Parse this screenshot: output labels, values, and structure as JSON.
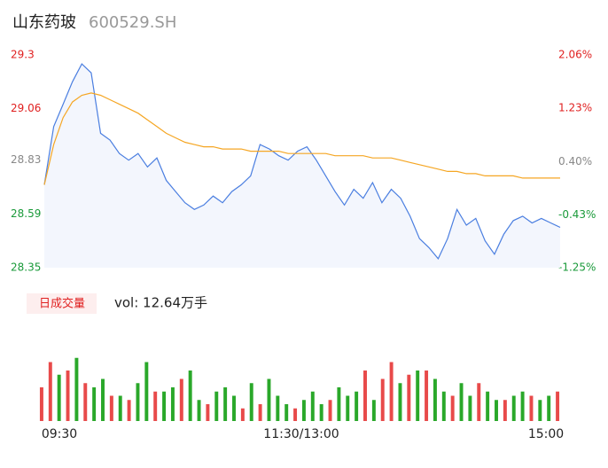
{
  "header": {
    "name": "山东药玻",
    "code": "600529.SH"
  },
  "chart_data": [
    {
      "type": "line",
      "ylim": [
        28.35,
        29.3
      ],
      "yticks": [
        28.35,
        28.59,
        28.83,
        29.06,
        29.3
      ],
      "ytick_colors": [
        "#1a9a3a",
        "#1a9a3a",
        "#888888",
        "#e02020",
        "#e02020"
      ],
      "y2lim": [
        -1.25,
        2.06
      ],
      "y2ticks": [
        {
          "value": -1.25,
          "label": "-1.25%"
        },
        {
          "value": -0.43,
          "label": "-0.43%"
        },
        {
          "value": 0.4,
          "label": "0.40%"
        },
        {
          "value": 1.23,
          "label": "1.23%"
        },
        {
          "value": 2.06,
          "label": "2.06%"
        }
      ],
      "y2tick_colors": [
        "#1a9a3a",
        "#1a9a3a",
        "#888888",
        "#e02020",
        "#e02020"
      ],
      "series": [
        {
          "color": "#4a7ee0",
          "values": [
            28.72,
            28.98,
            29.08,
            29.18,
            29.26,
            29.22,
            28.95,
            28.92,
            28.86,
            28.83,
            28.86,
            28.8,
            28.84,
            28.74,
            28.69,
            28.64,
            28.61,
            28.63,
            28.67,
            28.64,
            28.69,
            28.72,
            28.76,
            28.9,
            28.88,
            28.85,
            28.83,
            28.87,
            28.89,
            28.83,
            28.76,
            28.69,
            28.63,
            28.7,
            28.66,
            28.73,
            28.64,
            28.7,
            28.66,
            28.58,
            28.48,
            28.44,
            28.39,
            28.48,
            28.61,
            28.54,
            28.57,
            28.47,
            28.41,
            28.5,
            28.56,
            28.58,
            28.55,
            28.57,
            28.55,
            28.53
          ]
        },
        {
          "color": "#f5a623",
          "values": [
            28.72,
            28.9,
            29.02,
            29.09,
            29.12,
            29.13,
            29.12,
            29.1,
            29.08,
            29.06,
            29.04,
            29.01,
            28.98,
            28.95,
            28.93,
            28.91,
            28.9,
            28.89,
            28.89,
            28.88,
            28.88,
            28.88,
            28.87,
            28.87,
            28.87,
            28.87,
            28.86,
            28.86,
            28.86,
            28.86,
            28.86,
            28.85,
            28.85,
            28.85,
            28.85,
            28.84,
            28.84,
            28.84,
            28.83,
            28.82,
            28.81,
            28.8,
            28.79,
            28.78,
            28.78,
            28.77,
            28.77,
            28.76,
            28.76,
            28.76,
            28.76,
            28.75,
            28.75,
            28.75,
            28.75,
            28.75
          ]
        }
      ]
    },
    {
      "type": "bar",
      "title": "日成交量",
      "annotation": "vol: 12.64万手",
      "xticks": [
        "09:30",
        "11:30/13:00",
        "15:00"
      ],
      "ylim": [
        0,
        100
      ],
      "series": [
        {
          "color": "#e84a4a",
          "values": [
            40,
            70,
            null,
            60,
            null,
            45,
            null,
            null,
            30,
            null,
            25,
            null,
            null,
            35,
            null,
            null,
            50,
            null,
            null,
            20,
            null,
            null,
            null,
            15,
            null,
            20,
            null,
            null,
            null,
            15,
            null,
            null,
            null,
            25,
            null,
            null,
            null,
            60,
            null,
            50,
            70,
            null,
            55,
            null,
            60,
            null,
            null,
            30,
            null,
            null,
            45,
            null,
            null,
            25,
            null,
            null,
            30,
            null,
            null,
            35
          ]
        },
        {
          "color": "#2aa82a",
          "values": [
            null,
            null,
            55,
            null,
            75,
            null,
            40,
            50,
            null,
            30,
            null,
            45,
            70,
            null,
            35,
            40,
            null,
            60,
            25,
            null,
            35,
            40,
            30,
            null,
            45,
            null,
            50,
            30,
            20,
            null,
            25,
            35,
            20,
            null,
            40,
            30,
            35,
            null,
            25,
            null,
            null,
            45,
            null,
            60,
            null,
            50,
            35,
            null,
            45,
            30,
            null,
            35,
            25,
            null,
            30,
            35,
            null,
            25,
            30,
            null
          ]
        }
      ]
    }
  ]
}
